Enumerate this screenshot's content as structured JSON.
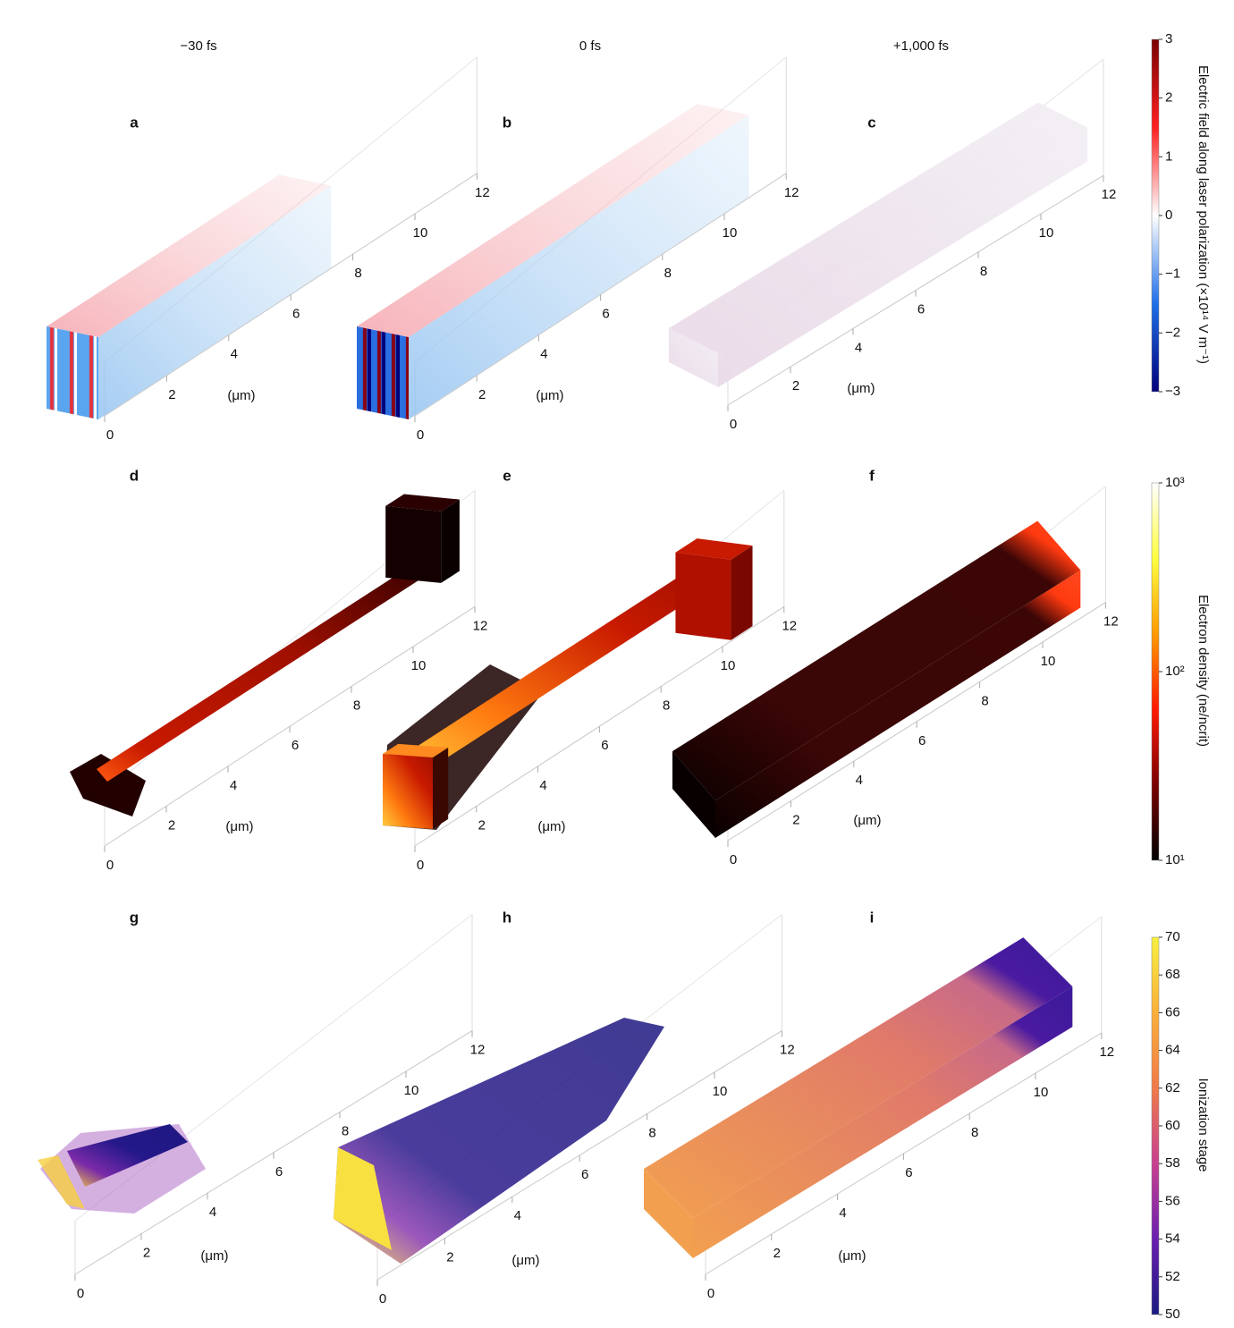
{
  "columns": [
    "−30 fs",
    "0 fs",
    "+1,000 fs"
  ],
  "panels": [
    {
      "letter": "a"
    },
    {
      "letter": "b"
    },
    {
      "letter": "c"
    },
    {
      "letter": "d"
    },
    {
      "letter": "e"
    },
    {
      "letter": "f"
    },
    {
      "letter": "g"
    },
    {
      "letter": "h"
    },
    {
      "letter": "i"
    }
  ],
  "axis": {
    "ticks": [
      0,
      2,
      4,
      6,
      8,
      10,
      12
    ],
    "unit": "(μm)"
  },
  "colorbars": [
    {
      "title": "Electric field along laser polarization (×10¹⁴ V m⁻¹)",
      "scale": "linear",
      "lim": [
        -3,
        3
      ],
      "colors": [
        "#00007a",
        "#1f6fe8",
        "#ffffff",
        "#ff2020",
        "#7a0000"
      ],
      "ticks": [
        3,
        2,
        1,
        0,
        {
          "value": -1,
          "label": "−1"
        },
        {
          "value": -2,
          "label": "−2"
        },
        {
          "value": -3,
          "label": "−3"
        }
      ]
    },
    {
      "title": "Electron density (ne/ncrit)",
      "scale": "log",
      "lim": [
        10,
        1000
      ],
      "colors": [
        "#000000",
        "#7a0000",
        "#ff1a00",
        "#ff9a00",
        "#ffff40",
        "#ffffff"
      ],
      "ticks": [
        {
          "value": 1000,
          "label": "10³"
        },
        {
          "value": 100,
          "label": "10²"
        },
        {
          "value": 10,
          "label": "10¹"
        }
      ]
    },
    {
      "title": "Ionization stage",
      "scale": "linear",
      "lim": [
        50,
        70
      ],
      "colors": [
        "#1a1a80",
        "#6a1fb0",
        "#c8408f",
        "#f07a4a",
        "#fbb03a",
        "#f7f040"
      ],
      "ticks": [
        70,
        68,
        66,
        64,
        62,
        60,
        58,
        56,
        54,
        52,
        50
      ]
    }
  ]
}
